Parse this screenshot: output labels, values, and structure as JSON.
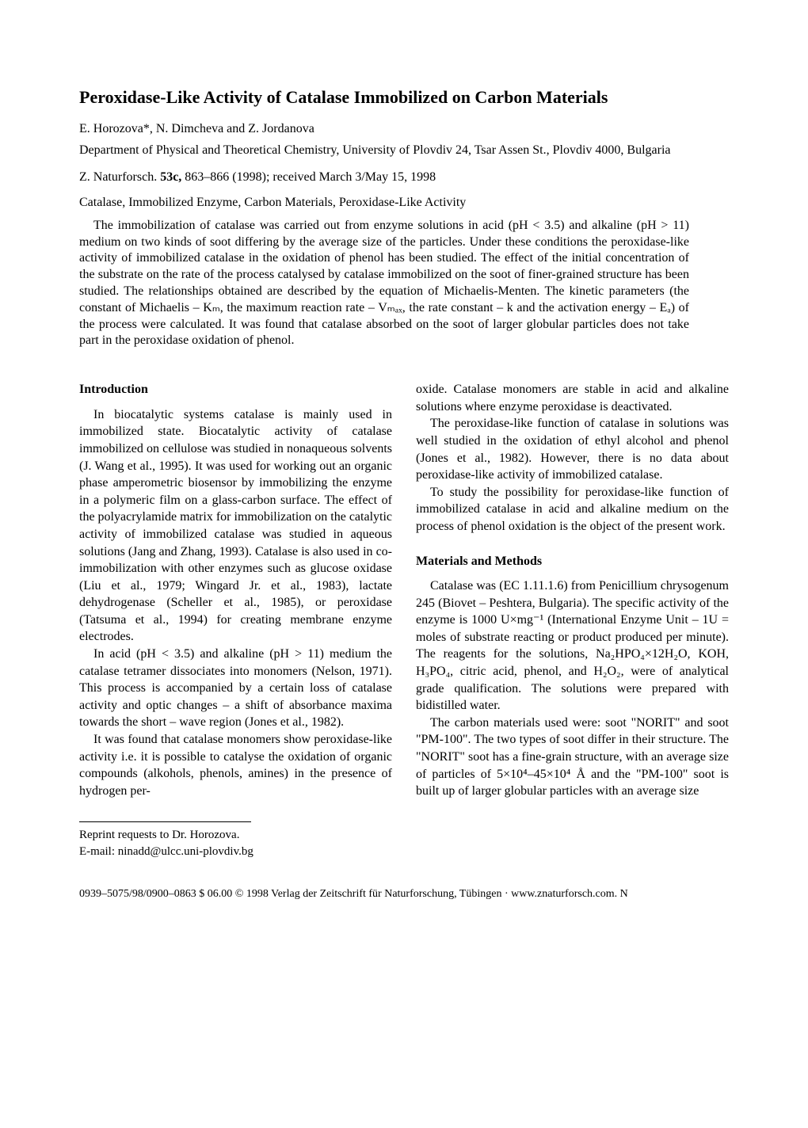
{
  "title": "Peroxidase-Like Activity of Catalase Immobilized on Carbon Materials",
  "authors": "E. Horozova*, N. Dimcheva and Z. Jordanova",
  "affiliation": "Department of Physical and Theoretical Chemistry, University of Plovdiv 24, Tsar Assen St., Plovdiv 4000, Bulgaria",
  "citation_prefix": "Z. Naturforsch. ",
  "citation_volume": "53c,",
  "citation_suffix": " 863–866 (1998); received March 3/May 15, 1998",
  "keywords": "Catalase, Immobilized Enzyme, Carbon Materials, Peroxidase-Like Activity",
  "abstract": "The immobilization of catalase was carried out from enzyme solutions in acid (pH < 3.5) and alkaline (pH > 11) medium on two kinds of soot differing by the average size of the particles. Under these conditions the peroxidase-like activity of immobilized catalase in the oxidation of phenol has been studied. The effect of the initial concentration of the substrate on the rate of the process catalysed by catalase immobilized on the soot of finer-grained structure has been studied. The relationships obtained are described by the equation of Michaelis-Menten. The kinetic parameters (the constant of Michaelis – Kₘ, the maximum reaction rate – Vₘₐₓ, the rate constant – k and the activation energy – Eₐ) of the process were calculated. It was found that catalase absorbed on the soot of larger globular particles does not take part in the peroxidase oxidation of phenol.",
  "intro_heading": "Introduction",
  "intro_p1": "In biocatalytic systems catalase is mainly used in immobilized state. Biocatalytic activity of catalase immobilized on cellulose was studied in nonaqueous solvents (J. Wang et al., 1995). It was used for working out an organic phase amperometric biosensor by immobilizing the enzyme in a polymeric film on a glass-carbon surface. The effect of the polyacrylamide matrix for immobilization on the catalytic activity of immobilized catalase was studied in aqueous solutions (Jang and Zhang, 1993). Catalase is also used in co-immobilization with other enzymes such as glucose oxidase (Liu et al., 1979; Wingard Jr. et al., 1983), lactate dehydrogenase (Scheller et al., 1985), or peroxidase (Tatsuma et al., 1994) for creating membrane enzyme electrodes.",
  "intro_p2": "In acid (pH < 3.5) and alkaline (pH > 11) medium the catalase tetramer dissociates into monomers (Nelson, 1971). This process is accompanied by a certain loss of catalase activity and optic changes – a shift of absorbance maxima towards the short – wave region (Jones et al., 1982).",
  "intro_p3": "It was found that catalase monomers show peroxidase-like activity i.e. it is possible to catalyse the oxidation of organic compounds (alkohols, phenols, amines) in the presence of hydrogen per-",
  "reprint_line1": "Reprint requests to Dr. Horozova.",
  "reprint_line2": "E-mail: ninadd@ulcc.uni-plovdiv.bg",
  "col2_p1": "oxide. Catalase monomers are stable in acid and alkaline solutions where enzyme peroxidase is deactivated.",
  "col2_p2": "The peroxidase-like function of catalase in solutions was well studied in the oxidation of ethyl alcohol and phenol (Jones et al., 1982). However, there is no data about peroxidase-like activity of immobilized catalase.",
  "col2_p3": "To study the possibility for peroxidase-like function of immobilized catalase in acid and alkaline medium on the process of phenol oxidation is the object of the present work.",
  "methods_heading": "Materials and Methods",
  "methods_p1": "Catalase was (EC 1.11.1.6) from Penicillium chrysogenum 245 (Biovet – Peshtera, Bulgaria). The specific activity of the enzyme is 1000 U×mg⁻¹ (International Enzyme Unit – 1U = moles of substrate reacting or product produced per minute). The reagents for the solutions, Na₂HPO₄×12H₂O, KOH, H₃PO₄, citric acid, phenol, and H₂O₂, were of analytical grade qualification. The solutions were prepared with bidistilled water.",
  "methods_p2": "The carbon materials used were: soot \"NORIT\" and soot \"PM-100\". The two types of soot differ in their structure. The \"NORIT\" soot has a fine-grain structure, with an average size of particles of 5×10⁴–45×10⁴ Å and the \"PM-100\" soot is built up of larger globular particles with an average size",
  "footer": "0939–5075/98/0900–0863 $ 06.00   © 1998 Verlag der Zeitschrift für Naturforschung, Tübingen · www.znaturforsch.com.   N"
}
